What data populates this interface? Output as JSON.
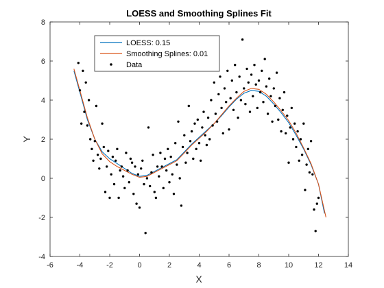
{
  "chart_data": {
    "type": "scatter",
    "title": "LOESS and Smoothing Splines Fit",
    "xlabel": "X",
    "ylabel": "Y",
    "xlim": [
      -6,
      14
    ],
    "ylim": [
      -4,
      8
    ],
    "xticks": [
      -6,
      -4,
      -2,
      0,
      2,
      4,
      6,
      8,
      10,
      12,
      14
    ],
    "yticks": [
      -4,
      -2,
      0,
      2,
      4,
      6,
      8
    ],
    "grid": false,
    "legend_position": "top-left",
    "series": [
      {
        "name": "LOESS: 0.15",
        "kind": "line",
        "color": "#0072BD",
        "points": [
          [
            -4.4,
            5.5
          ],
          [
            -4.0,
            4.4
          ],
          [
            -3.5,
            3.0
          ],
          [
            -3.0,
            2.0
          ],
          [
            -2.5,
            1.35
          ],
          [
            -2.0,
            1.0
          ],
          [
            -1.5,
            0.75
          ],
          [
            -1.0,
            0.5
          ],
          [
            -0.5,
            0.25
          ],
          [
            0.0,
            0.1
          ],
          [
            0.5,
            0.15
          ],
          [
            1.0,
            0.35
          ],
          [
            1.5,
            0.55
          ],
          [
            2.0,
            0.75
          ],
          [
            2.5,
            0.95
          ],
          [
            3.0,
            1.35
          ],
          [
            3.5,
            1.75
          ],
          [
            4.0,
            2.1
          ],
          [
            4.5,
            2.45
          ],
          [
            5.0,
            2.8
          ],
          [
            5.5,
            3.2
          ],
          [
            6.0,
            3.65
          ],
          [
            6.5,
            4.05
          ],
          [
            7.0,
            4.35
          ],
          [
            7.5,
            4.5
          ],
          [
            8.0,
            4.45
          ],
          [
            8.5,
            4.2
          ],
          [
            9.0,
            3.8
          ],
          [
            9.5,
            3.35
          ],
          [
            10.0,
            2.85
          ],
          [
            10.5,
            2.2
          ],
          [
            11.0,
            1.5
          ],
          [
            11.5,
            0.7
          ],
          [
            12.0,
            -0.3
          ],
          [
            12.4,
            -1.8
          ]
        ]
      },
      {
        "name": "Smoothing Splines: 0.01",
        "kind": "line",
        "color": "#D95319",
        "points": [
          [
            -4.4,
            5.6
          ],
          [
            -4.0,
            4.5
          ],
          [
            -3.5,
            3.1
          ],
          [
            -3.0,
            2.0
          ],
          [
            -2.5,
            1.25
          ],
          [
            -2.0,
            0.85
          ],
          [
            -1.5,
            0.6
          ],
          [
            -1.0,
            0.4
          ],
          [
            -0.5,
            0.2
          ],
          [
            0.0,
            0.05
          ],
          [
            0.5,
            0.1
          ],
          [
            1.0,
            0.3
          ],
          [
            1.5,
            0.5
          ],
          [
            2.0,
            0.7
          ],
          [
            2.5,
            0.9
          ],
          [
            3.0,
            1.3
          ],
          [
            3.5,
            1.7
          ],
          [
            4.0,
            2.05
          ],
          [
            4.5,
            2.4
          ],
          [
            5.0,
            2.8
          ],
          [
            5.5,
            3.25
          ],
          [
            6.0,
            3.7
          ],
          [
            6.5,
            4.1
          ],
          [
            7.0,
            4.45
          ],
          [
            7.5,
            4.6
          ],
          [
            8.0,
            4.55
          ],
          [
            8.5,
            4.3
          ],
          [
            9.0,
            3.9
          ],
          [
            9.5,
            3.45
          ],
          [
            10.0,
            2.95
          ],
          [
            10.5,
            2.3
          ],
          [
            11.0,
            1.55
          ],
          [
            11.5,
            0.75
          ],
          [
            12.0,
            -0.3
          ],
          [
            12.5,
            -2.0
          ]
        ]
      },
      {
        "name": "Data",
        "kind": "scatter",
        "color": "#000000",
        "points": [
          [
            -4.1,
            5.9
          ],
          [
            -4.0,
            4.5
          ],
          [
            -3.9,
            2.8
          ],
          [
            -3.8,
            5.5
          ],
          [
            -3.7,
            3.4
          ],
          [
            -3.6,
            4.9
          ],
          [
            -3.5,
            2.7
          ],
          [
            -3.4,
            4.0
          ],
          [
            -3.3,
            2.0
          ],
          [
            -3.2,
            1.5
          ],
          [
            -3.1,
            0.9
          ],
          [
            -3.0,
            1.9
          ],
          [
            -2.9,
            3.7
          ],
          [
            -2.8,
            1.2
          ],
          [
            -2.7,
            0.5
          ],
          [
            -2.6,
            1.0
          ],
          [
            -2.5,
            2.8
          ],
          [
            -2.4,
            1.6
          ],
          [
            -2.3,
            -0.7
          ],
          [
            -2.2,
            0.6
          ],
          [
            -2.1,
            1.4
          ],
          [
            -2.0,
            -1.0
          ],
          [
            -1.9,
            0.2
          ],
          [
            -1.8,
            1.1
          ],
          [
            -1.7,
            -0.3
          ],
          [
            -1.6,
            0.9
          ],
          [
            -1.5,
            1.5
          ],
          [
            -1.4,
            -1.0
          ],
          [
            -1.3,
            0.4
          ],
          [
            -1.2,
            0.6
          ],
          [
            -1.1,
            0.1
          ],
          [
            -1.0,
            -0.5
          ],
          [
            -0.9,
            1.3
          ],
          [
            -0.8,
            0.4
          ],
          [
            -0.7,
            -0.2
          ],
          [
            -0.6,
            1.0
          ],
          [
            -0.5,
            0.8
          ],
          [
            -0.4,
            -0.8
          ],
          [
            -0.3,
            0.6
          ],
          [
            -0.2,
            -1.3
          ],
          [
            -0.1,
            0.2
          ],
          [
            0.0,
            -1.5
          ],
          [
            0.1,
            0.5
          ],
          [
            0.2,
            0.9
          ],
          [
            0.3,
            -0.3
          ],
          [
            0.4,
            -2.8
          ],
          [
            0.5,
            0.0
          ],
          [
            0.6,
            2.6
          ],
          [
            0.7,
            -0.4
          ],
          [
            0.8,
            0.3
          ],
          [
            0.9,
            1.2
          ],
          [
            1.0,
            -0.7
          ],
          [
            1.1,
            -1.0
          ],
          [
            1.2,
            0.6
          ],
          [
            1.3,
            0.1
          ],
          [
            1.4,
            1.3
          ],
          [
            1.5,
            0.6
          ],
          [
            1.6,
            -0.5
          ],
          [
            1.7,
            1.0
          ],
          [
            1.8,
            0.4
          ],
          [
            1.9,
            1.5
          ],
          [
            2.0,
            -0.2
          ],
          [
            2.1,
            1.1
          ],
          [
            2.2,
            0.2
          ],
          [
            2.3,
            -0.8
          ],
          [
            2.4,
            1.8
          ],
          [
            2.5,
            0.7
          ],
          [
            2.6,
            2.9
          ],
          [
            2.7,
            0.0
          ],
          [
            2.8,
            -1.4
          ],
          [
            2.9,
            1.6
          ],
          [
            3.0,
            2.2
          ],
          [
            3.1,
            0.8
          ],
          [
            3.2,
            1.3
          ],
          [
            3.3,
            3.7
          ],
          [
            3.4,
            1.9
          ],
          [
            3.5,
            2.4
          ],
          [
            3.6,
            1.0
          ],
          [
            3.7,
            2.8
          ],
          [
            3.8,
            1.5
          ],
          [
            3.9,
            3.0
          ],
          [
            4.0,
            1.8
          ],
          [
            4.1,
            0.9
          ],
          [
            4.2,
            2.6
          ],
          [
            4.3,
            3.4
          ],
          [
            4.4,
            2.2
          ],
          [
            4.5,
            1.7
          ],
          [
            4.6,
            3.1
          ],
          [
            4.7,
            2.0
          ],
          [
            4.8,
            4.0
          ],
          [
            4.9,
            2.7
          ],
          [
            5.0,
            4.9
          ],
          [
            5.1,
            3.3
          ],
          [
            5.2,
            2.9
          ],
          [
            5.3,
            4.3
          ],
          [
            5.4,
            5.2
          ],
          [
            5.5,
            3.6
          ],
          [
            5.6,
            2.3
          ],
          [
            5.7,
            4.6
          ],
          [
            5.8,
            3.9
          ],
          [
            5.9,
            5.5
          ],
          [
            6.0,
            2.5
          ],
          [
            6.1,
            4.1
          ],
          [
            6.2,
            5.0
          ],
          [
            6.3,
            3.5
          ],
          [
            6.4,
            5.8
          ],
          [
            6.5,
            4.4
          ],
          [
            6.6,
            3.1
          ],
          [
            6.7,
            5.2
          ],
          [
            6.8,
            4.0
          ],
          [
            6.9,
            7.1
          ],
          [
            7.0,
            4.6
          ],
          [
            7.1,
            3.8
          ],
          [
            7.2,
            5.6
          ],
          [
            7.3,
            4.9
          ],
          [
            7.4,
            3.4
          ],
          [
            7.5,
            5.3
          ],
          [
            7.6,
            4.2
          ],
          [
            7.7,
            5.8
          ],
          [
            7.8,
            4.8
          ],
          [
            7.9,
            3.6
          ],
          [
            8.0,
            5.0
          ],
          [
            8.1,
            4.4
          ],
          [
            8.2,
            5.5
          ],
          [
            8.3,
            3.9
          ],
          [
            8.4,
            6.1
          ],
          [
            8.5,
            4.7
          ],
          [
            8.6,
            3.3
          ],
          [
            8.7,
            5.1
          ],
          [
            8.8,
            4.2
          ],
          [
            8.9,
            2.9
          ],
          [
            9.0,
            4.6
          ],
          [
            9.1,
            3.7
          ],
          [
            9.2,
            5.4
          ],
          [
            9.3,
            3.0
          ],
          [
            9.4,
            4.1
          ],
          [
            9.5,
            2.4
          ],
          [
            9.6,
            3.5
          ],
          [
            9.7,
            4.4
          ],
          [
            9.8,
            2.3
          ],
          [
            9.9,
            3.2
          ],
          [
            10.0,
            0.8
          ],
          [
            10.1,
            2.6
          ],
          [
            10.2,
            3.6
          ],
          [
            10.3,
            2.0
          ],
          [
            10.4,
            2.8
          ],
          [
            10.5,
            1.6
          ],
          [
            10.6,
            2.4
          ],
          [
            10.7,
            0.9
          ],
          [
            10.8,
            2.0
          ],
          [
            10.9,
            1.2
          ],
          [
            11.0,
            2.8
          ],
          [
            11.1,
            -0.6
          ],
          [
            11.2,
            0.7
          ],
          [
            11.3,
            1.5
          ],
          [
            11.4,
            0.3
          ],
          [
            11.5,
            1.9
          ],
          [
            11.6,
            0.2
          ],
          [
            11.7,
            -1.6
          ],
          [
            11.8,
            -2.7
          ],
          [
            11.9,
            -1.3
          ],
          [
            12.0,
            -1.0
          ]
        ]
      }
    ]
  }
}
